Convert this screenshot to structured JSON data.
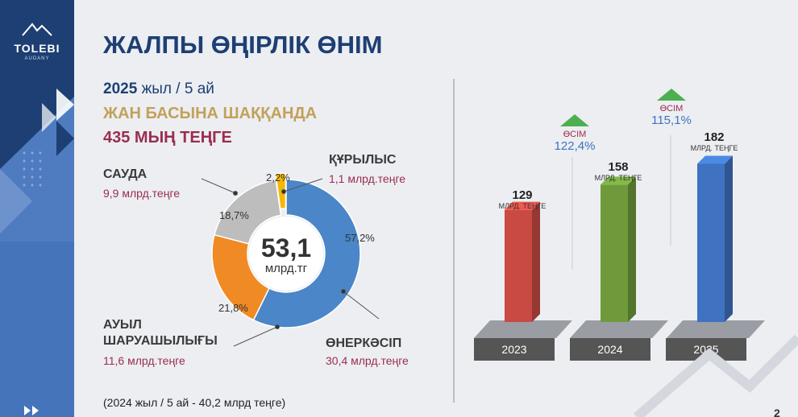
{
  "logo": {
    "name": "TOLEBI",
    "sub": "AUDANY"
  },
  "title": "ЖАЛПЫ ӨҢІРЛІК ӨНІМ",
  "header": {
    "year": "2025",
    "period": "жыл / 5 ай",
    "per_capita_label": "ЖАН БАСЫНА ШАҚҚАНДА",
    "per_capita_value": "435 МЫҢ ТЕҢГЕ"
  },
  "footnote": "(2024 жыл / 5 ай - 40,2 млрд теңге)",
  "page_number": "2",
  "colors": {
    "industry": "#4a86c8",
    "agriculture": "#f08a24",
    "trade": "#bdbdbd",
    "construction": "#f5b800",
    "bar2023": "#c94a43",
    "bar2024": "#6e9a3c",
    "bar2025": "#3f72c0",
    "navy": "#1d3f73"
  },
  "chart_data": [
    {
      "type": "pie",
      "center_value": "53,1",
      "center_unit": "млрд.тг",
      "slices": [
        {
          "label": "ӨНЕРКӘСІП",
          "value": 57.2,
          "pct_label": "57,2%",
          "amount": "30,4 млрд.теңге",
          "color": "#4a86c8"
        },
        {
          "label": "АУЫЛ ШАРУАШЫЛЫҒЫ",
          "value": 21.8,
          "pct_label": "21,8%",
          "amount": "11,6 млрд.теңге",
          "color": "#f08a24"
        },
        {
          "label": "САУДА",
          "value": 18.7,
          "pct_label": "18,7%",
          "amount": "9,9 млрд.теңге",
          "color": "#bdbdbd"
        },
        {
          "label": "ҚҰРЫЛЫС",
          "value": 2.2,
          "pct_label": "2,2%",
          "amount": "1,1 млрд.теңге",
          "color": "#f5b800"
        }
      ]
    },
    {
      "type": "bar",
      "categories": [
        "2023",
        "2024",
        "2025"
      ],
      "values": [
        129,
        158,
        182
      ],
      "unit": "МЛРД. ТЕҢГЕ",
      "growth": [
        {
          "label": "ӨСІМ",
          "value": "122,4%"
        },
        {
          "label": "ӨСІМ",
          "value": "115,1%"
        }
      ]
    }
  ]
}
